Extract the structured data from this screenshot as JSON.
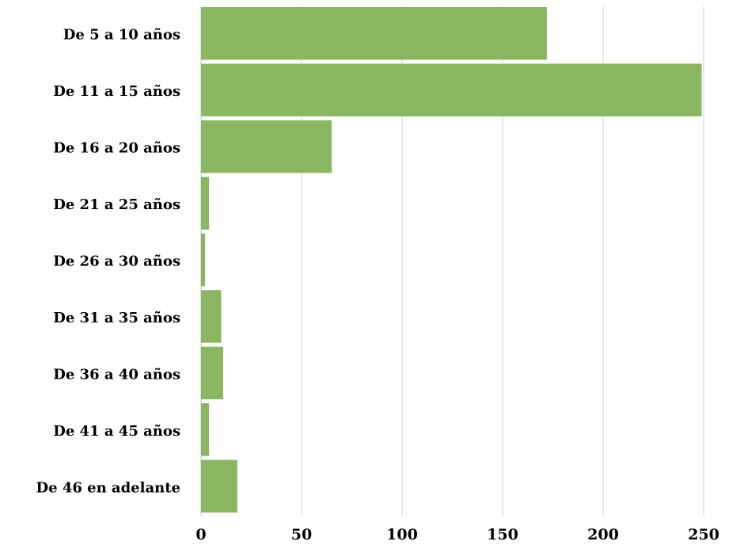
{
  "chart_data": {
    "type": "bar",
    "orientation": "horizontal",
    "categories": [
      "De 5 a 10 años",
      "De 11 a 15 años",
      "De 16 a 20 años",
      "De 21 a 25 años",
      "De 26 a 30 años",
      "De 31 a 35 años",
      "De 36 a 40 años",
      "De 41 a 45 años",
      "De 46 en adelante"
    ],
    "values": [
      172,
      249,
      65,
      4,
      2,
      10,
      11,
      4,
      18
    ],
    "xlim": [
      0,
      250
    ],
    "xticks": [
      0,
      50,
      100,
      150,
      200,
      250
    ],
    "tick_labels": [
      "0",
      "50",
      "100",
      "150",
      "200",
      "250"
    ],
    "grid": true,
    "legend": false,
    "bar_color": "#8ab661"
  }
}
